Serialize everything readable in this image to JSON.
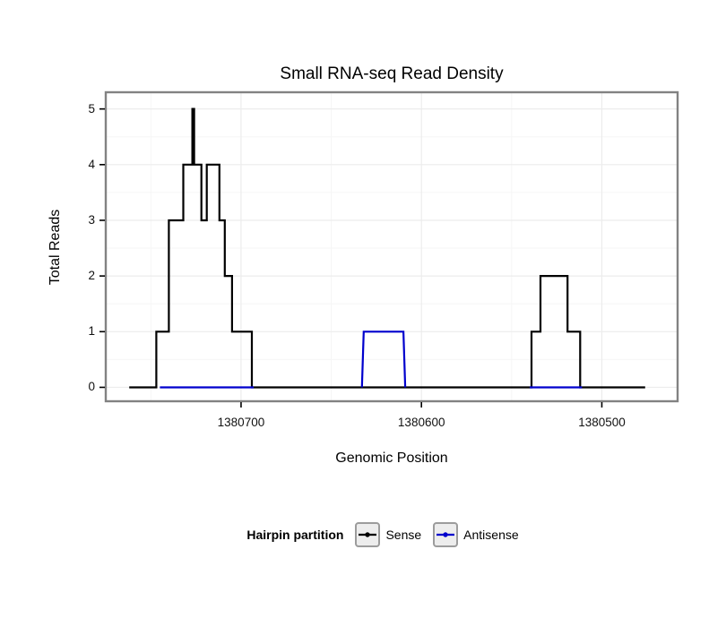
{
  "chart_data": {
    "type": "line",
    "title": "Small RNA-seq Read Density",
    "xlabel": "Genomic Position",
    "ylabel": "Total Reads",
    "x_reversed": true,
    "xlim": [
      1380775,
      1380458
    ],
    "ylim": [
      -0.25,
      5.3
    ],
    "xticks": [
      1380700,
      1380600,
      1380500
    ],
    "yticks": [
      0,
      1,
      2,
      3,
      4,
      5
    ],
    "grid": true,
    "series": [
      {
        "name": "Sense",
        "color": "#000000",
        "segments": [
          [
            [
              1380762,
              0
            ],
            [
              1380747,
              0
            ],
            [
              1380747,
              1
            ],
            [
              1380740,
              1
            ],
            [
              1380740,
              3
            ],
            [
              1380732,
              3
            ],
            [
              1380732,
              4
            ],
            [
              1380727,
              4
            ],
            [
              1380727,
              5
            ],
            [
              1380726,
              5
            ],
            [
              1380726,
              4
            ],
            [
              1380722,
              4
            ],
            [
              1380722,
              3
            ],
            [
              1380719,
              3
            ],
            [
              1380719,
              4
            ],
            [
              1380712,
              4
            ],
            [
              1380712,
              3
            ],
            [
              1380709,
              3
            ],
            [
              1380709,
              2
            ],
            [
              1380705,
              2
            ],
            [
              1380705,
              1
            ],
            [
              1380694,
              1
            ],
            [
              1380694,
              0
            ],
            [
              1380539,
              0
            ],
            [
              1380539,
              1
            ],
            [
              1380534,
              1
            ],
            [
              1380534,
              2
            ],
            [
              1380519,
              2
            ],
            [
              1380519,
              1
            ],
            [
              1380512,
              1
            ],
            [
              1380512,
              0
            ],
            [
              1380476,
              0
            ]
          ]
        ]
      },
      {
        "name": "Antisense",
        "color": "#0000cd",
        "segments": [
          [
            [
              1380745,
              0
            ],
            [
              1380693,
              0
            ]
          ],
          [
            [
              1380633,
              0
            ],
            [
              1380632,
              1
            ],
            [
              1380610,
              1
            ],
            [
              1380609,
              0
            ]
          ],
          [
            [
              1380540,
              0
            ],
            [
              1380511,
              0
            ]
          ]
        ]
      }
    ]
  },
  "legend": {
    "title": "Hairpin partition",
    "entries": [
      {
        "label": "Sense",
        "color": "#000000"
      },
      {
        "label": "Antisense",
        "color": "#0000cd"
      }
    ]
  },
  "colors": {
    "panel_border": "#828282",
    "grid_major": "#ececec",
    "grid_minor": "#f6f6f6",
    "tick": "#000000"
  }
}
